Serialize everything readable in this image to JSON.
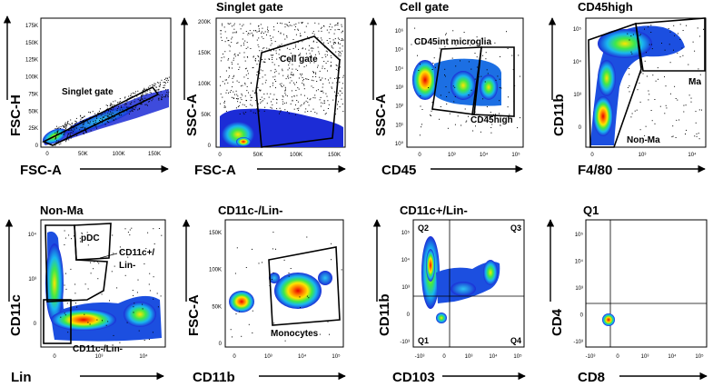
{
  "figure": {
    "description_free": true,
    "panels_count": 8
  },
  "chart_data": [
    {
      "id": "p1",
      "type": "scatter",
      "title": "",
      "xlabel": "FSC-A",
      "ylabel": "FSC-H",
      "x_ticks": [
        "0",
        "50K",
        "100K",
        "150K"
      ],
      "y_ticks": [
        "0",
        "25K",
        "50K",
        "75K",
        "100K",
        "125K",
        "150K",
        "175K"
      ],
      "gates": [
        {
          "name": "Singlet gate"
        }
      ]
    },
    {
      "id": "p2",
      "type": "scatter",
      "title": "Singlet gate",
      "xlabel": "FSC-A",
      "ylabel": "SSC-A",
      "x_ticks": [
        "0",
        "50K",
        "100K",
        "150K"
      ],
      "y_ticks": [
        "0",
        "50K",
        "100K",
        "150K",
        "200K"
      ],
      "gates": [
        {
          "name": "Cell gate"
        }
      ]
    },
    {
      "id": "p3",
      "type": "scatter",
      "title": "Cell gate",
      "xlabel": "CD45",
      "ylabel": "SSC-A",
      "x_ticks": [
        "0",
        "10³",
        "10⁴",
        "10⁵"
      ],
      "y_ticks": [
        "10⁰",
        "10¹",
        "10²",
        "10³",
        "10⁴",
        "10⁵",
        "10⁶"
      ],
      "gates": [
        {
          "name": "CD45int microglia"
        },
        {
          "name": "CD45high"
        }
      ]
    },
    {
      "id": "p4",
      "type": "scatter",
      "title": "CD45high",
      "xlabel": "F4/80",
      "ylabel": "CD11b",
      "x_ticks": [
        "0",
        "10³",
        "10⁴"
      ],
      "y_ticks": [
        "0",
        "10³",
        "10⁴",
        "10⁵"
      ],
      "gates": [
        {
          "name": "Ma"
        },
        {
          "name": "Non-Ma"
        }
      ]
    },
    {
      "id": "p5",
      "type": "scatter",
      "title": "Non-Ma",
      "xlabel": "Lin",
      "ylabel": "CD11c",
      "x_ticks": [
        "0",
        "10³",
        "10⁴"
      ],
      "y_ticks": [
        "0",
        "10³",
        "10⁴"
      ],
      "gates": [
        {
          "name": "pDC"
        },
        {
          "name": "CD11c+/",
          "name2": "Lin-"
        },
        {
          "name": "CD11c-/Lin-"
        }
      ]
    },
    {
      "id": "p6",
      "type": "scatter",
      "title": "CD11c-/Lin-",
      "xlabel": "CD11b",
      "ylabel": "FSC-A",
      "x_ticks": [
        "0",
        "10³",
        "10⁴",
        "10⁵"
      ],
      "y_ticks": [
        "0",
        "50K",
        "100K",
        "150K"
      ],
      "gates": [
        {
          "name": "Monocytes"
        }
      ]
    },
    {
      "id": "p7",
      "type": "scatter",
      "title": "CD11c+/Lin-",
      "xlabel": "CD103",
      "ylabel": "CD11b",
      "x_ticks": [
        "-10³",
        "0",
        "10³",
        "10⁴",
        "10⁵"
      ],
      "y_ticks": [
        "-10³",
        "0",
        "10³",
        "10⁴",
        "10⁵"
      ],
      "quadrants": [
        "Q1",
        "Q2",
        "Q3",
        "Q4"
      ]
    },
    {
      "id": "p8",
      "type": "scatter",
      "title": "Q1",
      "xlabel": "CD8",
      "ylabel": "CD4",
      "x_ticks": [
        "-10³",
        "0",
        "10³",
        "10⁴",
        "10⁵"
      ],
      "y_ticks": [
        "-10³",
        "0",
        "10³",
        "10⁴",
        "10⁵"
      ]
    }
  ]
}
